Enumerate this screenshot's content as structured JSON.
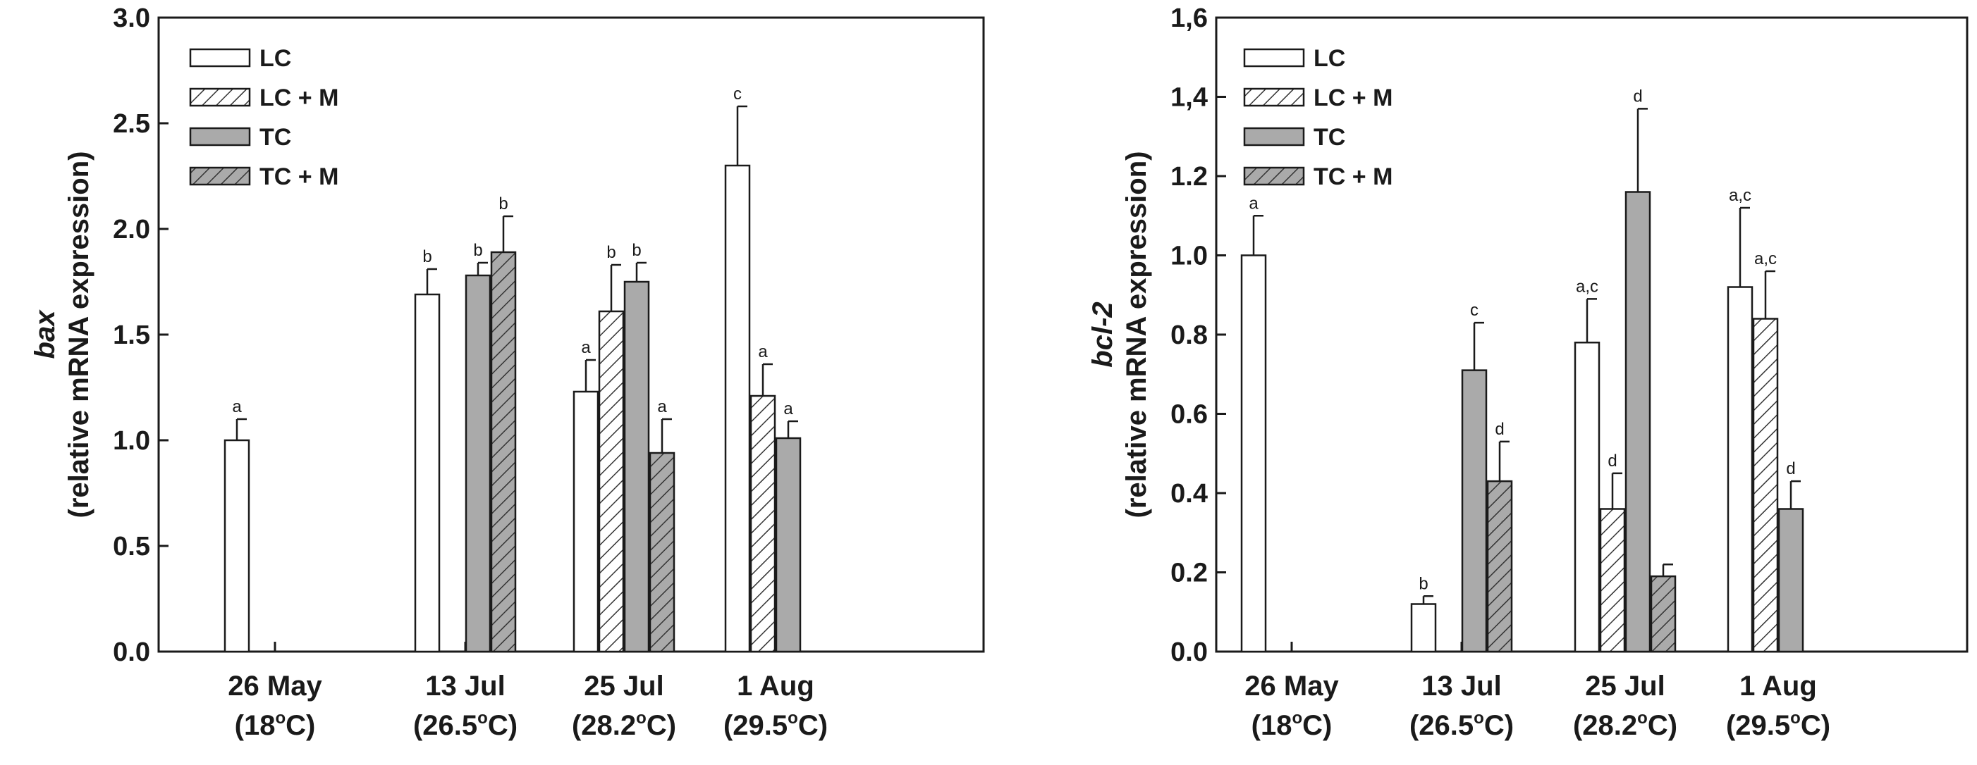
{
  "colors": {
    "lc": "#ffffff",
    "tc": "#aaaaaa",
    "stroke": "#1a1a1a",
    "hatch": "#333333"
  },
  "legend": {
    "items": [
      "LC",
      "LC + M",
      "TC",
      "TC + M"
    ]
  },
  "chart_data": [
    {
      "type": "bar",
      "title": "",
      "xlabel": "",
      "ylabel_line1": "bax",
      "ylabel_line2": "(relative mRNA expression)",
      "ylim": [
        0,
        3.0
      ],
      "ytick_values": [
        0,
        0.5,
        1.0,
        1.5,
        2.0,
        2.5,
        3.0
      ],
      "ytick_labels": [
        "0.0",
        "0.5",
        "1.0",
        "1.5",
        "2.0",
        "2.5",
        "3.0"
      ],
      "categories": [
        "26 May",
        "13 Jul",
        "25 Jul",
        "1 Aug"
      ],
      "category_temps": [
        "(18",
        "(26.5",
        "(28.2",
        "(29.5"
      ],
      "temp_degree": "o",
      "temp_unit": "C)",
      "series": [
        {
          "name": "LC",
          "values": [
            1.0,
            1.69,
            1.23,
            2.3
          ],
          "errors": [
            0.1,
            0.12,
            0.15,
            0.28
          ],
          "labels": [
            "a",
            "b",
            "a",
            "c"
          ]
        },
        {
          "name": "LC + M",
          "values": [
            null,
            null,
            1.61,
            1.21
          ],
          "errors": [
            null,
            null,
            0.22,
            0.15
          ],
          "labels": [
            "",
            "",
            "b",
            "a"
          ]
        },
        {
          "name": "TC",
          "values": [
            null,
            1.78,
            1.75,
            1.01
          ],
          "errors": [
            null,
            0.06,
            0.09,
            0.08
          ],
          "labels": [
            "",
            "b",
            "b",
            "a"
          ]
        },
        {
          "name": "TC + M",
          "values": [
            null,
            1.89,
            0.94,
            null
          ],
          "errors": [
            null,
            0.17,
            0.16,
            null
          ],
          "labels": [
            "",
            "b",
            "a",
            ""
          ]
        }
      ]
    },
    {
      "type": "bar",
      "title": "",
      "xlabel": "",
      "ylabel_line1": "bcl-2",
      "ylabel_line2": "(relative mRNA expression)",
      "ylim": [
        0,
        1.6
      ],
      "ytick_values": [
        0,
        0.2,
        0.4,
        0.6,
        0.8,
        1.0,
        1.2,
        1.4,
        1.6
      ],
      "ytick_labels": [
        "0.0",
        "0.2",
        "0.4",
        "0.6",
        "0.8",
        "1.0",
        "1.2",
        "1,4",
        "1,6"
      ],
      "categories": [
        "26 May",
        "13 Jul",
        "25 Jul",
        "1 Aug"
      ],
      "category_temps": [
        "(18",
        "(26.5",
        "(28.2",
        "(29.5"
      ],
      "temp_degree": "o",
      "temp_unit": "C)",
      "series": [
        {
          "name": "LC",
          "values": [
            1.0,
            0.12,
            0.78,
            0.92
          ],
          "errors": [
            0.1,
            0.02,
            0.11,
            0.2
          ],
          "labels": [
            "a",
            "b",
            "a,c",
            "a,c"
          ]
        },
        {
          "name": "LC + M",
          "values": [
            null,
            null,
            0.36,
            0.84
          ],
          "errors": [
            null,
            null,
            0.09,
            0.12
          ],
          "labels": [
            "",
            "",
            "d",
            "a,c"
          ]
        },
        {
          "name": "TC",
          "values": [
            null,
            0.71,
            1.16,
            0.36
          ],
          "errors": [
            null,
            0.12,
            0.21,
            0.07
          ],
          "labels": [
            "",
            "c",
            "d",
            "d"
          ]
        },
        {
          "name": "TC + M",
          "values": [
            null,
            0.43,
            0.19,
            null
          ],
          "errors": [
            null,
            0.1,
            0.03,
            null
          ],
          "labels": [
            "",
            "d",
            "",
            ""
          ]
        }
      ]
    }
  ]
}
